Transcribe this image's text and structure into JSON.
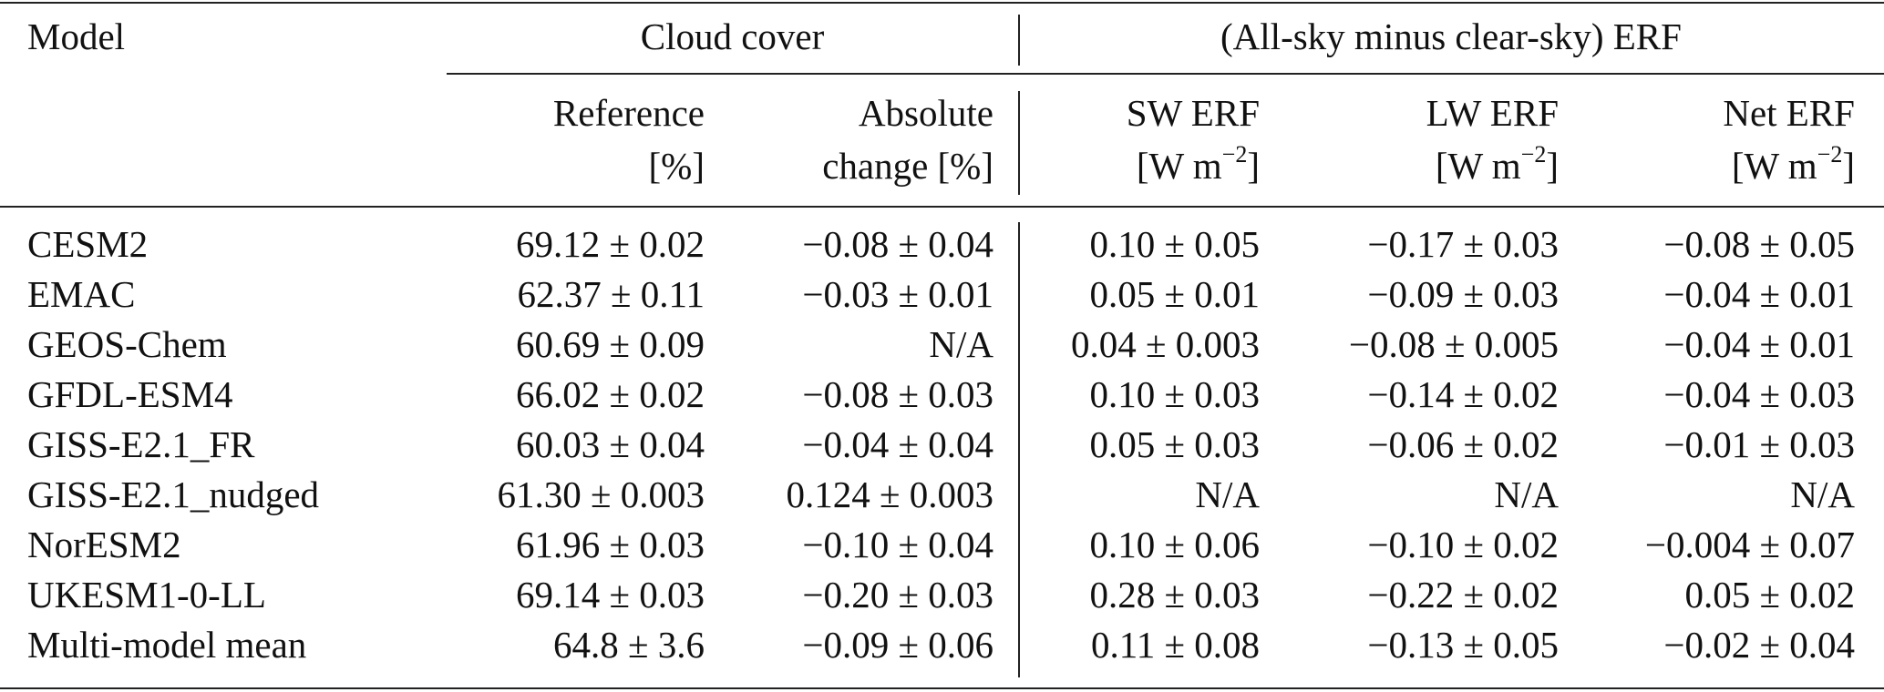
{
  "header": {
    "model": "Model",
    "cloud_cover": "Cloud cover",
    "erf_group": "(All-sky minus clear-sky) ERF",
    "reference_1": "Reference",
    "reference_2": "[%]",
    "absolute_1": "Absolute",
    "absolute_2": "change [%]",
    "sw_1": "SW ERF",
    "lw_1": "LW ERF",
    "net_1": "Net ERF",
    "unit_base": "[W m",
    "unit_exp": "−2",
    "unit_close": "]"
  },
  "rows": [
    {
      "model": "CESM2",
      "ref": "69.12 ± 0.02",
      "abs": "−0.08 ± 0.04",
      "sw": "0.10 ± 0.05",
      "lw": "−0.17 ± 0.03",
      "net": "−0.08 ± 0.05"
    },
    {
      "model": "EMAC",
      "ref": "62.37 ± 0.11",
      "abs": "−0.03 ± 0.01",
      "sw": "0.05 ± 0.01",
      "lw": "−0.09 ± 0.03",
      "net": "−0.04 ± 0.01"
    },
    {
      "model": "GEOS-Chem",
      "ref": "60.69 ± 0.09",
      "abs": "N/A",
      "sw": "0.04 ± 0.003",
      "lw": "−0.08 ± 0.005",
      "net": "−0.04 ± 0.01"
    },
    {
      "model": "GFDL-ESM4",
      "ref": "66.02 ± 0.02",
      "abs": "−0.08 ± 0.03",
      "sw": "0.10 ± 0.03",
      "lw": "−0.14 ± 0.02",
      "net": "−0.04 ± 0.03"
    },
    {
      "model": "GISS-E2.1_FR",
      "ref": "60.03 ± 0.04",
      "abs": "−0.04 ± 0.04",
      "sw": "0.05 ± 0.03",
      "lw": "−0.06 ± 0.02",
      "net": "−0.01 ± 0.03"
    },
    {
      "model": "GISS-E2.1_nudged",
      "ref": "61.30 ± 0.003",
      "abs": "0.124 ± 0.003",
      "sw": "N/A",
      "lw": "N/A",
      "net": "N/A"
    },
    {
      "model": "NorESM2",
      "ref": "61.96 ± 0.03",
      "abs": "−0.10 ± 0.04",
      "sw": "0.10 ± 0.06",
      "lw": "−0.10 ± 0.02",
      "net": "−0.004 ± 0.07"
    },
    {
      "model": "UKESM1-0-LL",
      "ref": "69.14 ± 0.03",
      "abs": "−0.20 ± 0.03",
      "sw": "0.28 ± 0.03",
      "lw": "−0.22 ± 0.02",
      "net": "0.05 ± 0.02"
    },
    {
      "model": "Multi-model mean",
      "ref": "64.8 ± 3.6",
      "abs": "−0.09 ± 0.06",
      "sw": "0.11 ± 0.08",
      "lw": "−0.13 ± 0.05",
      "net": "−0.02 ± 0.04"
    }
  ]
}
